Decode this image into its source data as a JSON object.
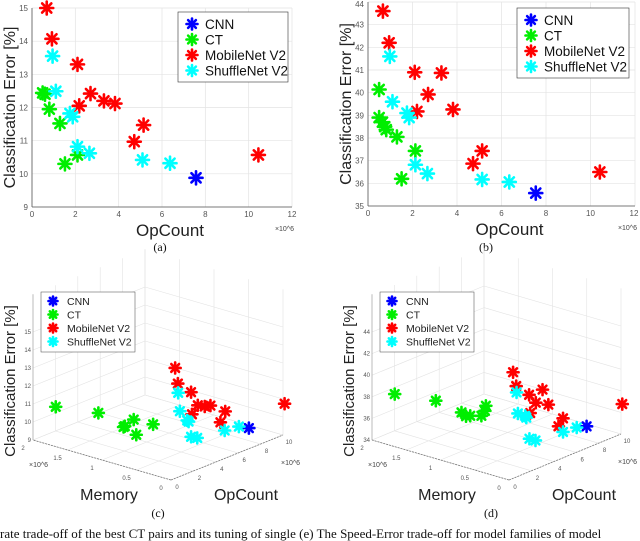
{
  "colors": {
    "CNN": "#0000ff",
    "CT": "#00ee00",
    "MobileNet V2": "#ff0000",
    "ShuffleNet V2": "#00ffff",
    "grid": "#e3e3e3",
    "axis": "#555555"
  },
  "chart_data": [
    {
      "panel": "(a)",
      "type": "scatter",
      "xlabel": "OpCount",
      "x_multiplier": "×10^6",
      "ylabel": "Classification Error [%]",
      "xlim": [
        0,
        12
      ],
      "ylim": [
        9,
        15
      ],
      "xticks": [
        0,
        2,
        4,
        6,
        8,
        10,
        12
      ],
      "yticks": [
        9,
        10,
        11,
        12,
        13,
        14,
        15
      ],
      "grid": true,
      "legend": "top-right",
      "marker": "asterisk",
      "series": [
        {
          "name": "CNN",
          "points": [
            [
              7.57,
              9.88
            ]
          ]
        },
        {
          "name": "CT",
          "points": [
            [
              0.49,
              12.44
            ],
            [
              0.6,
              12.4
            ],
            [
              0.8,
              11.95
            ],
            [
              1.29,
              11.52
            ],
            [
              1.52,
              10.3
            ],
            [
              2.1,
              10.57
            ]
          ]
        },
        {
          "name": "MobileNet V2",
          "points": [
            [
              0.68,
              15.0
            ],
            [
              0.92,
              14.07
            ],
            [
              2.1,
              13.3
            ],
            [
              2.7,
              12.42
            ],
            [
              2.18,
              12.05
            ],
            [
              3.32,
              12.2
            ],
            [
              3.83,
              12.12
            ],
            [
              4.72,
              10.97
            ],
            [
              5.15,
              11.47
            ],
            [
              10.45,
              10.57
            ]
          ]
        },
        {
          "name": "ShuffleNet V2",
          "points": [
            [
              0.95,
              13.55
            ],
            [
              1.1,
              12.49
            ],
            [
              1.75,
              11.82
            ],
            [
              1.88,
              11.72
            ],
            [
              2.1,
              10.82
            ],
            [
              2.65,
              10.62
            ],
            [
              5.1,
              10.42
            ],
            [
              6.37,
              10.32
            ]
          ]
        }
      ]
    },
    {
      "panel": "(b)",
      "type": "scatter",
      "xlabel": "OpCount",
      "x_multiplier": "×10^6",
      "ylabel": "Classification Error [%]",
      "xlim": [
        0,
        12
      ],
      "ylim": [
        35,
        44
      ],
      "xticks": [
        0,
        2,
        4,
        6,
        8,
        10,
        12
      ],
      "yticks": [
        35,
        36,
        37,
        38,
        39,
        40,
        41,
        42,
        43,
        44
      ],
      "grid": true,
      "legend": "top-right",
      "marker": "asterisk",
      "series": [
        {
          "name": "CNN",
          "points": [
            [
              7.54,
              35.57
            ]
          ]
        },
        {
          "name": "CT",
          "points": [
            [
              0.5,
              40.14
            ],
            [
              0.5,
              38.9
            ],
            [
              0.65,
              38.7
            ],
            [
              0.75,
              38.5
            ],
            [
              0.82,
              38.37
            ],
            [
              1.3,
              38.05
            ],
            [
              2.13,
              37.43
            ],
            [
              1.51,
              36.2
            ]
          ]
        },
        {
          "name": "MobileNet V2",
          "points": [
            [
              0.67,
              43.6
            ],
            [
              0.95,
              42.2
            ],
            [
              2.1,
              40.9
            ],
            [
              3.3,
              40.87
            ],
            [
              2.7,
              39.92
            ],
            [
              2.2,
              39.17
            ],
            [
              3.82,
              39.26
            ],
            [
              4.72,
              36.87
            ],
            [
              5.13,
              37.43
            ],
            [
              10.42,
              36.5
            ]
          ]
        },
        {
          "name": "ShuffleNet V2",
          "points": [
            [
              0.98,
              41.6
            ],
            [
              1.1,
              39.6
            ],
            [
              1.75,
              39.1
            ],
            [
              1.85,
              38.9
            ],
            [
              2.13,
              36.82
            ],
            [
              2.67,
              36.43
            ],
            [
              5.13,
              36.17
            ],
            [
              6.35,
              36.06
            ]
          ]
        }
      ]
    },
    {
      "panel": "(c)",
      "type": "scatter3d",
      "xlabel": "OpCount",
      "x_multiplier": "×10^6",
      "ylabel": "Memory",
      "y_multiplier": "×10^6",
      "zlabel": "Classification Error [%]",
      "xlim": [
        0,
        10
      ],
      "ylim": [
        0,
        2
      ],
      "zlim": [
        9,
        15
      ],
      "xticks": [
        0,
        2,
        4,
        6,
        8,
        10
      ],
      "yticks": [
        0,
        0.5,
        1,
        1.5,
        2
      ],
      "zticks": [
        9,
        10,
        11,
        12,
        13,
        14,
        15
      ],
      "grid": true,
      "legend": "top-left",
      "marker": "asterisk",
      "series": [
        {
          "name": "CNN",
          "points": [
            [
              7.57,
              0.1,
              9.88
            ]
          ]
        },
        {
          "name": "CT",
          "points": [
            [
              0.49,
              1.75,
              11.0
            ],
            [
              0.6,
              1.15,
              11.3
            ],
            [
              0.8,
              0.8,
              10.9
            ],
            [
              1.29,
              0.75,
              11.2
            ],
            [
              1.52,
              0.75,
              10.3
            ],
            [
              2.1,
              0.6,
              10.9
            ],
            [
              1.0,
              0.85,
              10.75
            ]
          ]
        },
        {
          "name": "MobileNet V2",
          "points": [
            [
              0.68,
              0.05,
              15.0
            ],
            [
              0.92,
              0.05,
              14.07
            ],
            [
              2.1,
              0.05,
              13.3
            ],
            [
              2.7,
              0.05,
              12.42
            ],
            [
              2.18,
              0.05,
              12.05
            ],
            [
              3.32,
              0.05,
              12.2
            ],
            [
              3.83,
              0.05,
              12.12
            ],
            [
              4.72,
              0.05,
              10.97
            ],
            [
              5.15,
              0.05,
              11.47
            ],
            [
              10.45,
              0.05,
              10.57
            ]
          ]
        },
        {
          "name": "ShuffleNet V2",
          "points": [
            [
              0.95,
              0.05,
              13.55
            ],
            [
              1.1,
              0.05,
              12.49
            ],
            [
              1.75,
              0.05,
              11.82
            ],
            [
              1.88,
              0.05,
              11.72
            ],
            [
              2.1,
              0.05,
              10.82
            ],
            [
              2.65,
              0.05,
              10.62
            ],
            [
              5.1,
              0.05,
              10.42
            ],
            [
              6.37,
              0.05,
              10.32
            ]
          ]
        }
      ]
    },
    {
      "panel": "(d)",
      "type": "scatter3d",
      "xlabel": "OpCount",
      "x_multiplier": "×10^6",
      "ylabel": "Memory",
      "y_multiplier": "×10^6",
      "zlabel": "Classification Error [%]",
      "xlim": [
        0,
        10
      ],
      "ylim": [
        0,
        2
      ],
      "zlim": [
        34,
        44
      ],
      "xticks": [
        0,
        2,
        4,
        6,
        8,
        10
      ],
      "yticks": [
        0,
        0.5,
        1,
        1.5,
        2
      ],
      "zticks": [
        34,
        36,
        38,
        40,
        42,
        44
      ],
      "grid": true,
      "legend": "top-left",
      "marker": "asterisk",
      "series": [
        {
          "name": "CNN",
          "points": [
            [
              7.54,
              0.1,
              35.57
            ]
          ]
        },
        {
          "name": "CT",
          "points": [
            [
              0.5,
              1.75,
              38.5
            ],
            [
              0.5,
              1.15,
              39.0
            ],
            [
              0.65,
              0.8,
              38.5
            ],
            [
              0.75,
              0.75,
              38.2
            ],
            [
              0.82,
              0.7,
              38.3
            ],
            [
              1.3,
              0.55,
              39.3
            ],
            [
              2.13,
              0.7,
              38.2
            ],
            [
              1.51,
              0.65,
              38.1
            ]
          ]
        },
        {
          "name": "MobileNet V2",
          "points": [
            [
              0.67,
              0.05,
              43.6
            ],
            [
              0.95,
              0.05,
              42.2
            ],
            [
              2.1,
              0.05,
              40.9
            ],
            [
              3.3,
              0.05,
              40.87
            ],
            [
              2.7,
              0.05,
              39.92
            ],
            [
              2.2,
              0.05,
              39.17
            ],
            [
              3.82,
              0.05,
              39.26
            ],
            [
              4.72,
              0.05,
              36.87
            ],
            [
              5.13,
              0.05,
              37.43
            ],
            [
              10.42,
              0.05,
              36.5
            ]
          ]
        },
        {
          "name": "ShuffleNet V2",
          "points": [
            [
              0.98,
              0.05,
              41.6
            ],
            [
              1.1,
              0.05,
              39.6
            ],
            [
              1.75,
              0.05,
              39.1
            ],
            [
              1.85,
              0.05,
              38.9
            ],
            [
              2.13,
              0.05,
              36.82
            ],
            [
              2.67,
              0.05,
              36.43
            ],
            [
              5.13,
              0.05,
              36.17
            ],
            [
              6.35,
              0.05,
              36.06
            ]
          ]
        }
      ]
    }
  ],
  "caption_fragment": "rate trade-off of the best CT pairs and its tuning of single        (e) The Speed-Error trade-off for model families of model"
}
